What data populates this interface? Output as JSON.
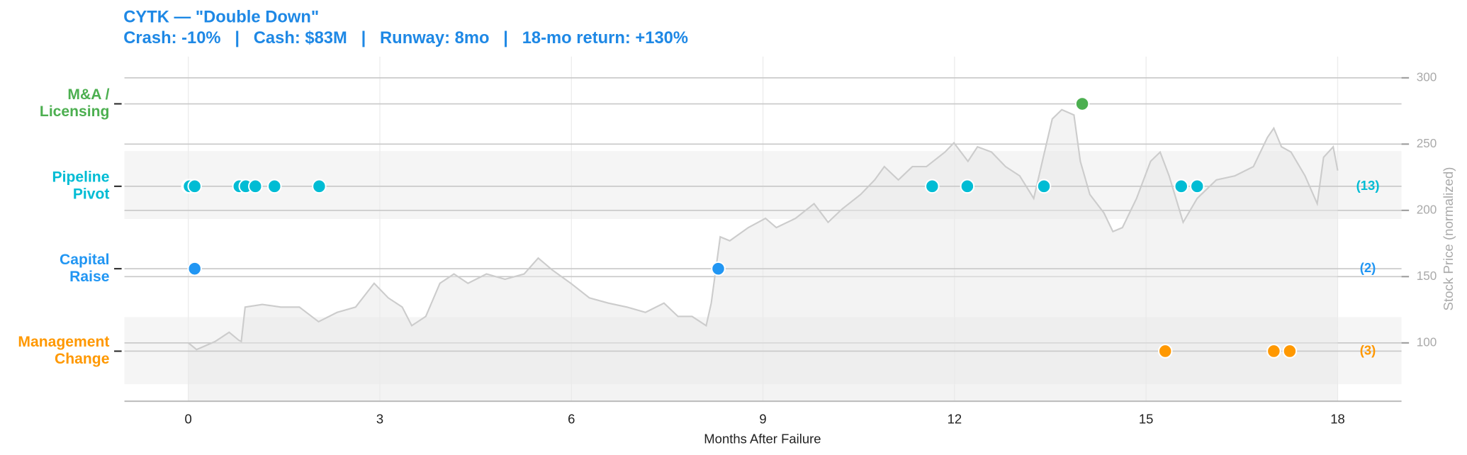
{
  "chart_data": {
    "type": "event_timeline",
    "title": "CYTK — \"Double Down\"",
    "subtitle": "Crash: -10%   |   Cash: $83M   |   Runway: 8mo   |   18-mo return: +130%",
    "title_color": "#1e88e5",
    "xlabel": "Months After Failure",
    "y2label": "Stock Price (normalized)",
    "xlim": [
      -1,
      19
    ],
    "xticks": [
      0,
      3,
      6,
      9,
      12,
      15,
      18
    ],
    "y2lim": [
      56,
      316
    ],
    "y2ticks": [
      100,
      150,
      200,
      250,
      300
    ],
    "grid": true,
    "series": [
      {
        "label": [
          "Management",
          "Change"
        ],
        "color": "#ff9800",
        "x": [
          15.3,
          17.0,
          17.25
        ],
        "count": 3,
        "count_label": "(3)"
      },
      {
        "label": [
          "Capital",
          "Raise"
        ],
        "color": "#2196f3",
        "x": [
          0.1,
          8.3
        ],
        "count": 2,
        "count_label": "(2)"
      },
      {
        "label": [
          "Pipeline",
          "Pivot"
        ],
        "color": "#00bcd4",
        "x": [
          0.0,
          0.02,
          0.1,
          0.8,
          0.9,
          1.05,
          1.35,
          2.05,
          11.65,
          12.2,
          13.4,
          15.55,
          15.8
        ],
        "count": 13,
        "count_label": "(13)"
      },
      {
        "label": [
          "M&A /",
          "Licensing"
        ],
        "color": "#4caf50",
        "x": [
          14.0
        ]
      }
    ],
    "price": {
      "color": "#cccccc",
      "x": [
        0.0,
        0.13,
        0.42,
        0.64,
        0.79,
        0.83,
        0.89,
        1.16,
        1.45,
        1.74,
        2.04,
        2.33,
        2.62,
        2.91,
        3.13,
        3.35,
        3.5,
        3.72,
        3.94,
        4.16,
        4.38,
        4.67,
        4.96,
        5.26,
        5.48,
        5.7,
        5.99,
        6.28,
        6.58,
        6.87,
        7.16,
        7.45,
        7.67,
        7.89,
        8.11,
        8.19,
        8.33,
        8.48,
        8.77,
        9.04,
        9.21,
        9.51,
        9.8,
        10.02,
        10.24,
        10.53,
        10.75,
        10.9,
        11.12,
        11.34,
        11.56,
        11.85,
        11.99,
        12.21,
        12.36,
        12.58,
        12.8,
        13.02,
        13.24,
        13.39,
        13.53,
        13.68,
        13.87,
        13.97,
        14.12,
        14.34,
        14.48,
        14.63,
        14.85,
        15.07,
        15.22,
        15.36,
        15.58,
        15.8,
        16.1,
        16.39,
        16.68,
        16.9,
        17.0,
        17.12,
        17.27,
        17.49,
        17.68,
        17.78,
        17.93,
        18.0
      ],
      "values": [
        100,
        95,
        101,
        108,
        102,
        101,
        127,
        129,
        127,
        127,
        116,
        123,
        127,
        145,
        134,
        127,
        113,
        120,
        145,
        152,
        145,
        152,
        148,
        152,
        164,
        155,
        145,
        134,
        130,
        127,
        123,
        130,
        120,
        120,
        113,
        130,
        180,
        177,
        187,
        194,
        187,
        194,
        205,
        191,
        201,
        212,
        223,
        233,
        223,
        233,
        233,
        244,
        251,
        237,
        248,
        244,
        233,
        226,
        209,
        240,
        269,
        276,
        272,
        237,
        212,
        198,
        184,
        187,
        209,
        237,
        244,
        226,
        191,
        209,
        223,
        226,
        233,
        255,
        262,
        248,
        244,
        226,
        205,
        240,
        248,
        230
      ]
    }
  }
}
